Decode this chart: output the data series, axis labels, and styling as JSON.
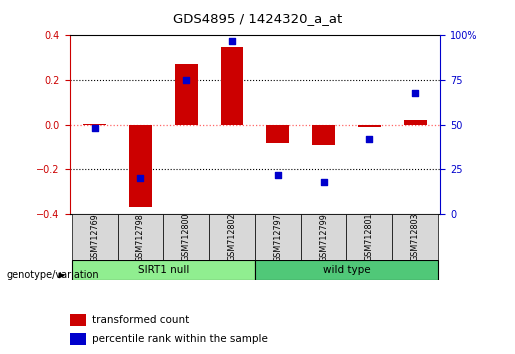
{
  "title": "GDS4895 / 1424320_a_at",
  "samples": [
    "GSM712769",
    "GSM712798",
    "GSM712800",
    "GSM712802",
    "GSM712797",
    "GSM712799",
    "GSM712801",
    "GSM712803"
  ],
  "red_values": [
    0.002,
    -0.37,
    0.27,
    0.35,
    -0.08,
    -0.09,
    -0.012,
    0.022
  ],
  "blue_values_pct": [
    48,
    20,
    75,
    97,
    22,
    18,
    42,
    68
  ],
  "ylim": [
    -0.4,
    0.4
  ],
  "yticks_left": [
    -0.4,
    -0.2,
    0.0,
    0.2,
    0.4
  ],
  "right_labels": [
    "0",
    "25",
    "50",
    "75",
    "100%"
  ],
  "red_color": "#CC0000",
  "blue_color": "#0000CC",
  "red_zero_color": "#FF6666",
  "bar_width": 0.5,
  "square_size": 18,
  "group1_label": "SIRT1 null",
  "group2_label": "wild type",
  "group1_color": "#90EE90",
  "group2_color": "#50C878",
  "genotype_label": "genotype/variation",
  "legend_red": "transformed count",
  "legend_blue": "percentile rank within the sample"
}
